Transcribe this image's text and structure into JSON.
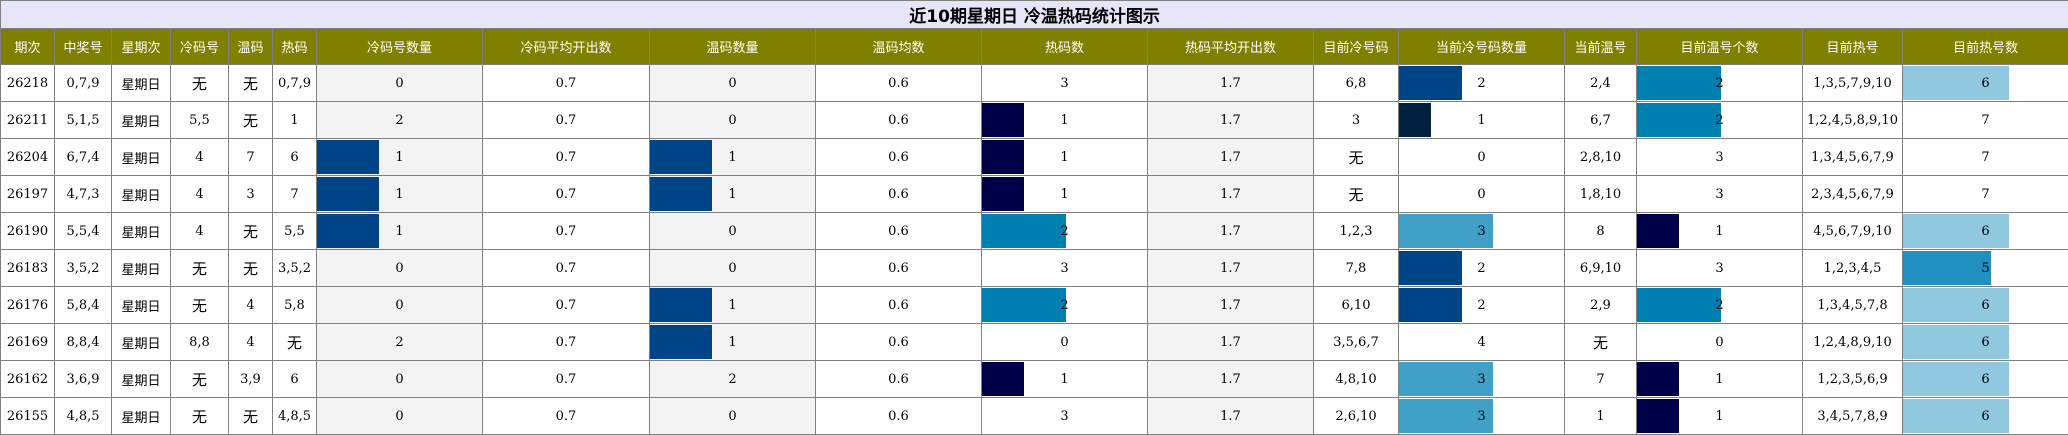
{
  "title": "近10期星期日 冷温热码统计图示",
  "headers": [
    "期次",
    "中奖号",
    "星期次",
    "冷码号",
    "温码",
    "热码",
    "冷码号数量",
    "冷码平均开出数",
    "温码数量",
    "温码均数",
    "热码数",
    "热码平均开出数",
    "目前冷号码",
    "当前冷号码数量",
    "当前温号",
    "目前温号个数",
    "目前热号",
    "目前热号数"
  ],
  "columns": [
    "period",
    "winning",
    "weekday",
    "cold_nums",
    "warm_nums",
    "hot_nums",
    "cold_count",
    "cold_avg",
    "warm_count",
    "warm_avg",
    "hot_count",
    "hot_avg",
    "cur_cold",
    "cur_cold_count",
    "cur_warm",
    "cur_warm_count",
    "cur_hot",
    "cur_hot_count"
  ],
  "bar_colors": {
    "1": "#000048",
    "2": "#0080b0",
    "3": "#40a0c8",
    "5": "#2090c0",
    "6": "#90c8e0"
  },
  "cold_bar_color": "#004488",
  "cur_cold_colors": {
    "1": "#002040",
    "2": "#004488",
    "3": "#40a0c8"
  },
  "rows": [
    {
      "period": "26218",
      "winning": "0,7,9",
      "weekday": "星期日",
      "cold_nums": "无",
      "warm_nums": "无",
      "hot_nums": "0,7,9",
      "cold_count": "0",
      "cold_avg": "0.7",
      "warm_count": "0",
      "warm_avg": "0.6",
      "hot_count": "3",
      "hot_avg": "1.7",
      "cur_cold": "6,8",
      "cur_cold_count": "2",
      "cur_warm": "2,4",
      "cur_warm_count": "2",
      "cur_hot": "1,3,5,7,9,10",
      "cur_hot_count": "6"
    },
    {
      "period": "26211",
      "winning": "5,1,5",
      "weekday": "星期日",
      "cold_nums": "5,5",
      "warm_nums": "无",
      "hot_nums": "1",
      "cold_count": "2",
      "cold_avg": "0.7",
      "warm_count": "0",
      "warm_avg": "0.6",
      "hot_count": "1",
      "hot_avg": "1.7",
      "cur_cold": "3",
      "cur_cold_count": "1",
      "cur_warm": "6,7",
      "cur_warm_count": "2",
      "cur_hot": "1,2,4,5,8,9,10",
      "cur_hot_count": "7"
    },
    {
      "period": "26204",
      "winning": "6,7,4",
      "weekday": "星期日",
      "cold_nums": "4",
      "warm_nums": "7",
      "hot_nums": "6",
      "cold_count": "1",
      "cold_avg": "0.7",
      "warm_count": "1",
      "warm_avg": "0.6",
      "hot_count": "1",
      "hot_avg": "1.7",
      "cur_cold": "无",
      "cur_cold_count": "0",
      "cur_warm": "2,8,10",
      "cur_warm_count": "3",
      "cur_hot": "1,3,4,5,6,7,9",
      "cur_hot_count": "7"
    },
    {
      "period": "26197",
      "winning": "4,7,3",
      "weekday": "星期日",
      "cold_nums": "4",
      "warm_nums": "3",
      "hot_nums": "7",
      "cold_count": "1",
      "cold_avg": "0.7",
      "warm_count": "1",
      "warm_avg": "0.6",
      "hot_count": "1",
      "hot_avg": "1.7",
      "cur_cold": "无",
      "cur_cold_count": "0",
      "cur_warm": "1,8,10",
      "cur_warm_count": "3",
      "cur_hot": "2,3,4,5,6,7,9",
      "cur_hot_count": "7"
    },
    {
      "period": "26190",
      "winning": "5,5,4",
      "weekday": "星期日",
      "cold_nums": "4",
      "warm_nums": "无",
      "hot_nums": "5,5",
      "cold_count": "1",
      "cold_avg": "0.7",
      "warm_count": "0",
      "warm_avg": "0.6",
      "hot_count": "2",
      "hot_avg": "1.7",
      "cur_cold": "1,2,3",
      "cur_cold_count": "3",
      "cur_warm": "8",
      "cur_warm_count": "1",
      "cur_hot": "4,5,6,7,9,10",
      "cur_hot_count": "6"
    },
    {
      "period": "26183",
      "winning": "3,5,2",
      "weekday": "星期日",
      "cold_nums": "无",
      "warm_nums": "无",
      "hot_nums": "3,5,2",
      "cold_count": "0",
      "cold_avg": "0.7",
      "warm_count": "0",
      "warm_avg": "0.6",
      "hot_count": "3",
      "hot_avg": "1.7",
      "cur_cold": "7,8",
      "cur_cold_count": "2",
      "cur_warm": "6,9,10",
      "cur_warm_count": "3",
      "cur_hot": "1,2,3,4,5",
      "cur_hot_count": "5"
    },
    {
      "period": "26176",
      "winning": "5,8,4",
      "weekday": "星期日",
      "cold_nums": "无",
      "warm_nums": "4",
      "hot_nums": "5,8",
      "cold_count": "0",
      "cold_avg": "0.7",
      "warm_count": "1",
      "warm_avg": "0.6",
      "hot_count": "2",
      "hot_avg": "1.7",
      "cur_cold": "6,10",
      "cur_cold_count": "2",
      "cur_warm": "2,9",
      "cur_warm_count": "2",
      "cur_hot": "1,3,4,5,7,8",
      "cur_hot_count": "6"
    },
    {
      "period": "26169",
      "winning": "8,8,4",
      "weekday": "星期日",
      "cold_nums": "8,8",
      "warm_nums": "4",
      "hot_nums": "无",
      "cold_count": "2",
      "cold_avg": "0.7",
      "warm_count": "1",
      "warm_avg": "0.6",
      "hot_count": "0",
      "hot_avg": "1.7",
      "cur_cold": "3,5,6,7",
      "cur_cold_count": "4",
      "cur_warm": "无",
      "cur_warm_count": "0",
      "cur_hot": "1,2,4,8,9,10",
      "cur_hot_count": "6"
    },
    {
      "period": "26162",
      "winning": "3,6,9",
      "weekday": "星期日",
      "cold_nums": "无",
      "warm_nums": "3,9",
      "hot_nums": "6",
      "cold_count": "0",
      "cold_avg": "0.7",
      "warm_count": "2",
      "warm_avg": "0.6",
      "hot_count": "1",
      "hot_avg": "1.7",
      "cur_cold": "4,8,10",
      "cur_cold_count": "3",
      "cur_warm": "7",
      "cur_warm_count": "1",
      "cur_hot": "1,2,3,5,6,9",
      "cur_hot_count": "6"
    },
    {
      "period": "26155",
      "winning": "4,8,5",
      "weekday": "星期日",
      "cold_nums": "无",
      "warm_nums": "无",
      "hot_nums": "4,8,5",
      "cold_count": "0",
      "cold_avg": "0.7",
      "warm_count": "0",
      "warm_avg": "0.6",
      "hot_count": "3",
      "hot_avg": "1.7",
      "cur_cold": "2,6,10",
      "cur_cold_count": "3",
      "cur_warm": "1",
      "cur_warm_count": "1",
      "cur_hot": "3,4,5,7,8,9",
      "cur_hot_count": "6"
    }
  ]
}
